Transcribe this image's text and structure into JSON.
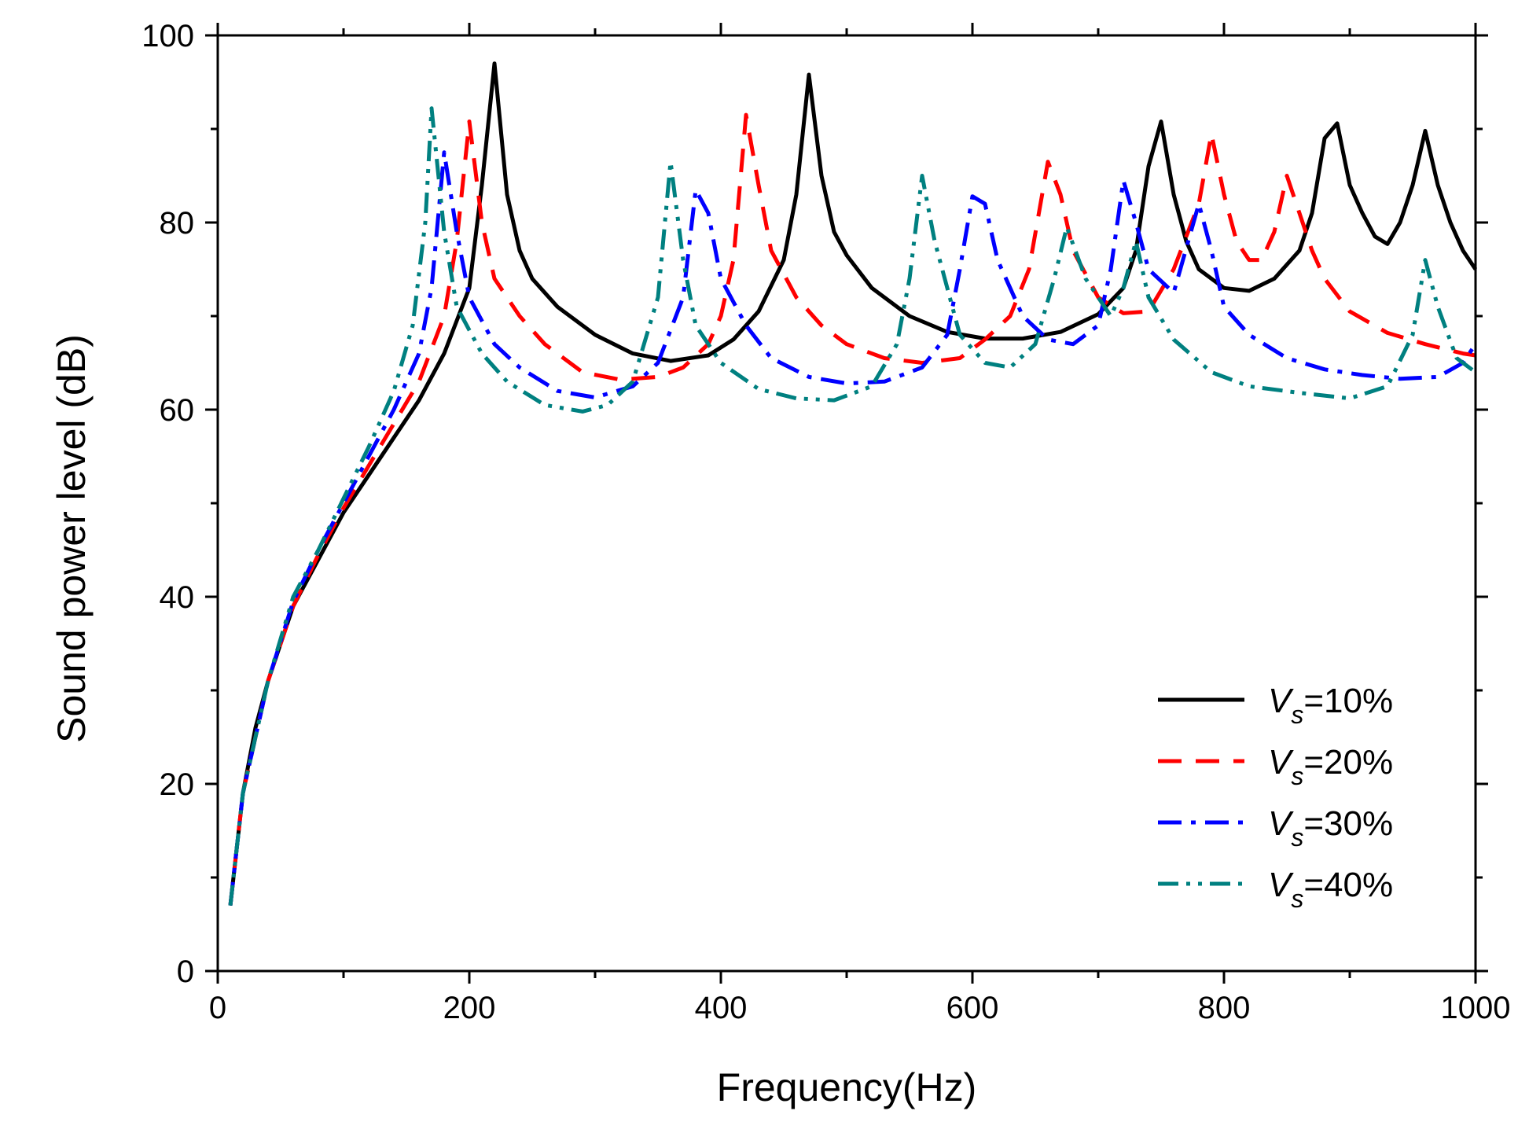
{
  "chart_data": {
    "type": "line",
    "title": "",
    "xlabel": "Frequency(Hz)",
    "ylabel": "Sound power level (dB)",
    "xlim": [
      0,
      1000
    ],
    "ylim": [
      0,
      100
    ],
    "x_ticks": [
      0,
      200,
      400,
      600,
      800,
      1000
    ],
    "y_ticks": [
      0,
      20,
      40,
      60,
      80,
      100
    ],
    "grid": false,
    "legend_position": "bottom-right",
    "series": [
      {
        "name": "Vs=10%",
        "legend_var": "V",
        "legend_sub": "s",
        "legend_value": "=10%",
        "color": "#000000",
        "dash": "solid",
        "points": [
          [
            10,
            7
          ],
          [
            20,
            19
          ],
          [
            30,
            26
          ],
          [
            40,
            31
          ],
          [
            60,
            39
          ],
          [
            80,
            44
          ],
          [
            100,
            49
          ],
          [
            120,
            53
          ],
          [
            140,
            57
          ],
          [
            160,
            61
          ],
          [
            180,
            66
          ],
          [
            200,
            73
          ],
          [
            210,
            84
          ],
          [
            220,
            97
          ],
          [
            230,
            83
          ],
          [
            240,
            77
          ],
          [
            250,
            74
          ],
          [
            270,
            71
          ],
          [
            300,
            68
          ],
          [
            330,
            66
          ],
          [
            360,
            65.2
          ],
          [
            390,
            65.8
          ],
          [
            410,
            67.5
          ],
          [
            430,
            70.5
          ],
          [
            450,
            76
          ],
          [
            460,
            83
          ],
          [
            470,
            95.8
          ],
          [
            480,
            85
          ],
          [
            490,
            79
          ],
          [
            500,
            76.5
          ],
          [
            520,
            73
          ],
          [
            550,
            70
          ],
          [
            580,
            68.3
          ],
          [
            610,
            67.6
          ],
          [
            640,
            67.6
          ],
          [
            670,
            68.3
          ],
          [
            700,
            70.2
          ],
          [
            720,
            73
          ],
          [
            730,
            77
          ],
          [
            740,
            86
          ],
          [
            750,
            90.8
          ],
          [
            760,
            83
          ],
          [
            770,
            78
          ],
          [
            780,
            75
          ],
          [
            800,
            73
          ],
          [
            820,
            72.7
          ],
          [
            840,
            74
          ],
          [
            860,
            77
          ],
          [
            870,
            81
          ],
          [
            880,
            89
          ],
          [
            890,
            90.6
          ],
          [
            900,
            84
          ],
          [
            910,
            81
          ],
          [
            920,
            78.5
          ],
          [
            930,
            77.7
          ],
          [
            940,
            80
          ],
          [
            950,
            84
          ],
          [
            960,
            89.8
          ],
          [
            970,
            84
          ],
          [
            980,
            80
          ],
          [
            990,
            77
          ],
          [
            1000,
            75
          ]
        ]
      },
      {
        "name": "Vs=20%",
        "legend_var": "V",
        "legend_sub": "s",
        "legend_value": "=20%",
        "color": "#ff0000",
        "dash": "dash",
        "points": [
          [
            10,
            7
          ],
          [
            20,
            19
          ],
          [
            40,
            31
          ],
          [
            60,
            39
          ],
          [
            80,
            44.5
          ],
          [
            100,
            49.5
          ],
          [
            120,
            54
          ],
          [
            140,
            58.5
          ],
          [
            160,
            63
          ],
          [
            180,
            70
          ],
          [
            190,
            78
          ],
          [
            200,
            90.8
          ],
          [
            210,
            80
          ],
          [
            220,
            74
          ],
          [
            240,
            70
          ],
          [
            260,
            67
          ],
          [
            290,
            64
          ],
          [
            320,
            63.2
          ],
          [
            350,
            63.5
          ],
          [
            370,
            64.5
          ],
          [
            390,
            67
          ],
          [
            400,
            70
          ],
          [
            410,
            76
          ],
          [
            420,
            91.5
          ],
          [
            430,
            84
          ],
          [
            440,
            77
          ],
          [
            460,
            72
          ],
          [
            480,
            69
          ],
          [
            500,
            67
          ],
          [
            530,
            65.5
          ],
          [
            560,
            65
          ],
          [
            590,
            65.5
          ],
          [
            610,
            67.5
          ],
          [
            630,
            70
          ],
          [
            645,
            75
          ],
          [
            660,
            86.5
          ],
          [
            670,
            83
          ],
          [
            680,
            77
          ],
          [
            700,
            72
          ],
          [
            720,
            70.3
          ],
          [
            740,
            70.5
          ],
          [
            760,
            75
          ],
          [
            780,
            82
          ],
          [
            790,
            89.5
          ],
          [
            800,
            83
          ],
          [
            810,
            78
          ],
          [
            820,
            76
          ],
          [
            830,
            76
          ],
          [
            840,
            79
          ],
          [
            850,
            85
          ],
          [
            860,
            81
          ],
          [
            870,
            77
          ],
          [
            880,
            74
          ],
          [
            900,
            70.5
          ],
          [
            930,
            68.2
          ],
          [
            960,
            67
          ],
          [
            990,
            66
          ],
          [
            1000,
            65.8
          ]
        ]
      },
      {
        "name": "Vs=30%",
        "legend_var": "V",
        "legend_sub": "s",
        "legend_value": "=30%",
        "color": "#0000ff",
        "dash": "dashdot",
        "points": [
          [
            10,
            7
          ],
          [
            20,
            19
          ],
          [
            40,
            31
          ],
          [
            60,
            39.5
          ],
          [
            80,
            45
          ],
          [
            100,
            50
          ],
          [
            120,
            55
          ],
          [
            140,
            60
          ],
          [
            160,
            66
          ],
          [
            170,
            73
          ],
          [
            180,
            87.5
          ],
          [
            190,
            79
          ],
          [
            200,
            72
          ],
          [
            220,
            67
          ],
          [
            240,
            64.5
          ],
          [
            270,
            62
          ],
          [
            300,
            61.3
          ],
          [
            330,
            62.5
          ],
          [
            350,
            65
          ],
          [
            370,
            72
          ],
          [
            380,
            83.5
          ],
          [
            390,
            81
          ],
          [
            400,
            74
          ],
          [
            420,
            69
          ],
          [
            440,
            65.5
          ],
          [
            470,
            63.5
          ],
          [
            500,
            62.8
          ],
          [
            530,
            63
          ],
          [
            560,
            64.5
          ],
          [
            580,
            68
          ],
          [
            590,
            75
          ],
          [
            600,
            82.8
          ],
          [
            610,
            82
          ],
          [
            620,
            76
          ],
          [
            640,
            70
          ],
          [
            660,
            67.5
          ],
          [
            680,
            67
          ],
          [
            700,
            69
          ],
          [
            710,
            75
          ],
          [
            720,
            84.5
          ],
          [
            730,
            80
          ],
          [
            740,
            75
          ],
          [
            760,
            72.5
          ],
          [
            780,
            82
          ],
          [
            790,
            77
          ],
          [
            800,
            71
          ],
          [
            820,
            68
          ],
          [
            850,
            65.5
          ],
          [
            880,
            64.3
          ],
          [
            910,
            63.7
          ],
          [
            940,
            63.3
          ],
          [
            970,
            63.5
          ],
          [
            990,
            65
          ],
          [
            1000,
            67
          ]
        ]
      },
      {
        "name": "Vs=40%",
        "legend_var": "V",
        "legend_sub": "s",
        "legend_value": "=40%",
        "color": "#008080",
        "dash": "dashdotdot",
        "points": [
          [
            10,
            7
          ],
          [
            20,
            19
          ],
          [
            40,
            31
          ],
          [
            60,
            40
          ],
          [
            80,
            45
          ],
          [
            100,
            50.5
          ],
          [
            120,
            56
          ],
          [
            140,
            62
          ],
          [
            155,
            69
          ],
          [
            165,
            80
          ],
          [
            170,
            92.2
          ],
          [
            180,
            79
          ],
          [
            190,
            71
          ],
          [
            210,
            66
          ],
          [
            230,
            63
          ],
          [
            260,
            60.5
          ],
          [
            290,
            59.8
          ],
          [
            310,
            60.5
          ],
          [
            330,
            63
          ],
          [
            350,
            72
          ],
          [
            360,
            86.5
          ],
          [
            370,
            76
          ],
          [
            380,
            69
          ],
          [
            400,
            65
          ],
          [
            430,
            62.2
          ],
          [
            460,
            61.2
          ],
          [
            490,
            61
          ],
          [
            520,
            62.5
          ],
          [
            540,
            67
          ],
          [
            550,
            74
          ],
          [
            560,
            85
          ],
          [
            570,
            78
          ],
          [
            590,
            68
          ],
          [
            610,
            65
          ],
          [
            630,
            64.5
          ],
          [
            650,
            67
          ],
          [
            665,
            74
          ],
          [
            675,
            79.5
          ],
          [
            690,
            74
          ],
          [
            710,
            70
          ],
          [
            720,
            73
          ],
          [
            730,
            78
          ],
          [
            740,
            72
          ],
          [
            760,
            67.5
          ],
          [
            790,
            64
          ],
          [
            820,
            62.5
          ],
          [
            860,
            61.8
          ],
          [
            900,
            61.2
          ],
          [
            930,
            62.5
          ],
          [
            950,
            68
          ],
          [
            960,
            76
          ],
          [
            970,
            71
          ],
          [
            985,
            65.5
          ],
          [
            1000,
            64
          ]
        ]
      }
    ]
  }
}
